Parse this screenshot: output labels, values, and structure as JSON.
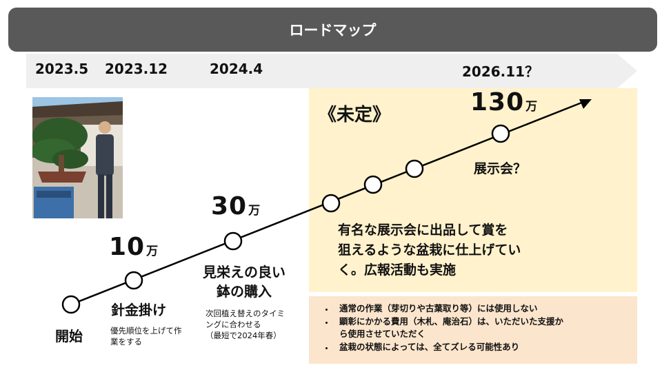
{
  "header": {
    "title": "ロードマップ"
  },
  "timeline": {
    "dates": [
      "2023.5",
      "2023.12",
      "2024.4",
      "2026.11？"
    ]
  },
  "undecided_label": "《未定》",
  "milestones": [
    {
      "label": "開始"
    },
    {
      "amount": "10",
      "unit": "万",
      "label": "針金掛け",
      "note_lines": [
        "優先順位を上げて作",
        "業をする"
      ]
    },
    {
      "amount": "30",
      "unit": "万",
      "label_lines": [
        "見栄えの良い",
        "鉢の購入"
      ],
      "note_lines": [
        "次回植え替えのタイミ",
        "ングに合わせる",
        "（最短で2024年春）"
      ]
    },
    {
      "amount": "130",
      "unit": "万",
      "label": "展示会？"
    }
  ],
  "plan_text_lines": [
    "有名な展示会に出品して賞を",
    "狙えるような盆栽に仕上げてい",
    "く。広報活動も実施"
  ],
  "conditions_lines": [
    [
      "通常の作業（芽切りや古葉取り等）には使用しない"
    ],
    [
      "顕彰にかかる費用（木札、庵治石）は、いただいた支援か",
      "ら使用させていただく"
    ],
    [
      "盆栽の状態によっては、全てズレる可能性あり"
    ]
  ],
  "colors": {
    "title_bar": "#595959",
    "timeline_arrow": "#efefef",
    "undecided_panel": "#fff2cc",
    "conditions_panel": "#fce5cd",
    "line": "#000000"
  }
}
